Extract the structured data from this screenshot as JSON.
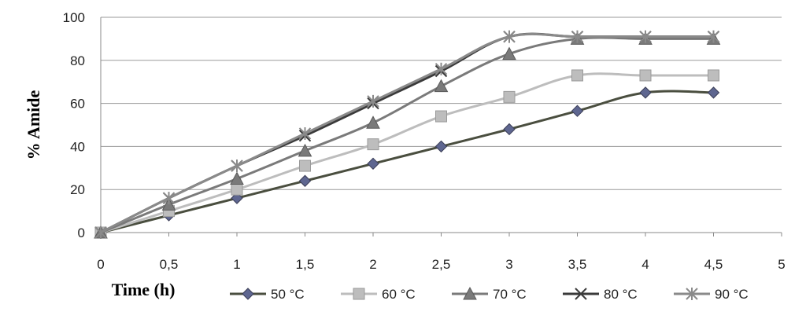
{
  "chart_data": {
    "type": "line",
    "title": "",
    "xlabel": "Time (h)",
    "ylabel": "% Amide",
    "xlim": [
      0,
      5
    ],
    "ylim": [
      0,
      100
    ],
    "x_ticks": [
      "0",
      "0,5",
      "1",
      "1,5",
      "2",
      "2,5",
      "3",
      "3,5",
      "4",
      "4,5",
      "5"
    ],
    "y_ticks": [
      "0",
      "20",
      "40",
      "60",
      "80",
      "100"
    ],
    "grid": "horizontal",
    "legend_position": "bottom",
    "x": [
      0,
      0.5,
      1,
      1.5,
      2,
      2.5,
      3,
      3.5,
      4,
      4.5
    ],
    "series": [
      {
        "name": "50 °C",
        "marker": "diamond",
        "color": "#4a4e3f",
        "marker_fill": "#5e6690",
        "values": [
          0,
          8,
          16,
          24,
          32,
          40,
          48,
          56.5,
          65,
          65
        ]
      },
      {
        "name": "60 °C",
        "marker": "square",
        "color": "#bdbdbd",
        "marker_fill": "#bdbdbd",
        "values": [
          0,
          10,
          20,
          31,
          41,
          54,
          63,
          73,
          73,
          73
        ]
      },
      {
        "name": "70 °C",
        "marker": "triangle",
        "color": "#7a7a7a",
        "marker_fill": "#7a7a7a",
        "values": [
          0,
          13,
          25,
          38,
          51,
          68,
          83,
          90,
          90,
          90
        ]
      },
      {
        "name": "80 °C",
        "marker": "x",
        "color": "#3a3a3a",
        "marker_fill": "#3a3a3a",
        "values": [
          0,
          16,
          31,
          45,
          60,
          75,
          91,
          91,
          91,
          91
        ]
      },
      {
        "name": "90 °C",
        "marker": "star",
        "color": "#8a8a8a",
        "marker_fill": "#8a8a8a",
        "values": [
          0,
          16,
          31,
          46,
          61,
          76,
          91,
          91,
          91,
          91
        ]
      }
    ]
  }
}
